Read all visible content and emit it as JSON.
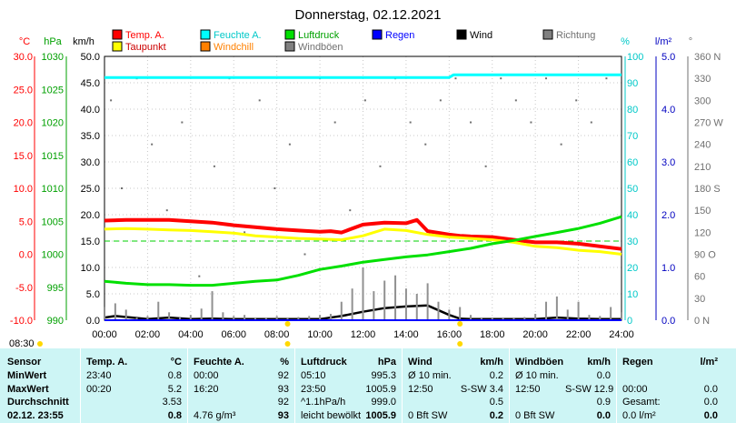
{
  "chart_data": {
    "type": "line",
    "title": "Donnerstag, 02.12.2021",
    "x_ticks": [
      "00:00",
      "02:00",
      "04:00",
      "06:00",
      "08:00",
      "10:00",
      "12:00",
      "14:00",
      "16:00",
      "18:00",
      "20:00",
      "22:00",
      "24:00"
    ],
    "xlim": [
      0,
      24
    ],
    "axes": {
      "temp": {
        "unit": "°C",
        "ticks": [
          "30.0",
          "25.0",
          "20.0",
          "15.0",
          "10.0",
          "5.0",
          "0.0",
          "-5.0",
          "-10.0"
        ],
        "range": [
          -10,
          30
        ],
        "color": "#ff0000"
      },
      "pressure": {
        "unit": "hPa",
        "ticks": [
          "1030",
          "1025",
          "1020",
          "1015",
          "1010",
          "1005",
          "1000",
          "995",
          "990"
        ],
        "range": [
          990,
          1030
        ],
        "color": "#00c000"
      },
      "wind": {
        "unit": "km/h",
        "ticks": [
          "50.0",
          "45.0",
          "40.0",
          "35.0",
          "30.0",
          "25.0",
          "20.0",
          "15.0",
          "10.0",
          "5.0",
          "0.0"
        ],
        "range": [
          0,
          50
        ],
        "color": "#000000"
      },
      "humidity": {
        "unit": "%",
        "ticks": [
          "100",
          "90",
          "80",
          "70",
          "60",
          "50",
          "40",
          "30",
          "20",
          "10",
          "0"
        ],
        "range": [
          0,
          100
        ],
        "color": "#00d0d0"
      },
      "rain": {
        "unit": "l/m²",
        "ticks": [
          "5.0",
          "4.0",
          "3.0",
          "2.0",
          "1.0",
          "0.0"
        ],
        "range": [
          0,
          5
        ],
        "color": "#0000c0"
      },
      "direction": {
        "unit": "°",
        "ticks": [
          "360 N",
          "330",
          "300",
          "270 W",
          "240",
          "210",
          "180 S",
          "150",
          "120",
          "90 O",
          "60",
          "30",
          "0   N"
        ],
        "range": [
          0,
          360
        ],
        "color": "#808080"
      }
    },
    "legend": [
      {
        "name": "Temp. A.",
        "color": "#ff0000"
      },
      {
        "name": "Feuchte A.",
        "color": "#00ffff"
      },
      {
        "name": "Luftdruck",
        "color": "#00e000"
      },
      {
        "name": "Regen",
        "color": "#0000ff"
      },
      {
        "name": "Wind",
        "color": "#000000"
      },
      {
        "name": "Richtung",
        "color": "#808080"
      },
      {
        "name": "Taupunkt",
        "color": "#ffff00"
      },
      {
        "name": "Windchill",
        "color": "#ff8000"
      },
      {
        "name": "Windböen",
        "color": "#808080"
      }
    ],
    "series": [
      {
        "name": "Temp. A.",
        "axis": "temp",
        "color": "#ff0000",
        "x": [
          0,
          1,
          2,
          3,
          4,
          5,
          6,
          7,
          8,
          9,
          10,
          10.5,
          11,
          12,
          13,
          14,
          14.5,
          15,
          16,
          16.5,
          17,
          18,
          19,
          20,
          21,
          22,
          23,
          24
        ],
        "y": [
          5.1,
          5.2,
          5.2,
          5.2,
          5.0,
          4.8,
          4.4,
          4.1,
          3.8,
          3.6,
          3.4,
          3.5,
          3.3,
          4.5,
          4.8,
          4.7,
          5.2,
          3.5,
          3.0,
          2.8,
          2.7,
          2.6,
          2.2,
          1.8,
          1.8,
          1.6,
          1.2,
          0.8
        ]
      },
      {
        "name": "Taupunkt",
        "axis": "temp",
        "color": "#ffff00",
        "x": [
          0,
          1,
          2,
          3,
          4,
          5,
          6,
          7,
          8,
          9,
          10,
          11,
          12,
          13,
          14,
          15,
          16,
          17,
          18,
          19,
          20,
          21,
          22,
          23,
          24
        ],
        "y": [
          3.8,
          3.9,
          3.8,
          3.7,
          3.6,
          3.4,
          3.2,
          2.8,
          2.6,
          2.4,
          2.3,
          2.2,
          2.8,
          3.8,
          3.6,
          3.0,
          2.6,
          2.4,
          2.2,
          1.8,
          1.2,
          1.0,
          0.6,
          0.4,
          0.0
        ]
      },
      {
        "name": "Feuchte A.",
        "axis": "humidity",
        "color": "#00ffff",
        "x": [
          0,
          1,
          2,
          3,
          4,
          5,
          6,
          7,
          8,
          9,
          10,
          11,
          12,
          13,
          14,
          15,
          16,
          16.2,
          17,
          18,
          19,
          20,
          21,
          22,
          23,
          24
        ],
        "y": [
          92,
          92,
          92,
          92,
          92,
          92,
          92,
          92,
          92,
          92,
          92,
          92,
          92,
          92,
          92,
          92,
          92,
          93,
          93,
          93,
          93,
          93,
          93,
          93,
          93,
          93
        ]
      },
      {
        "name": "Luftdruck",
        "axis": "pressure",
        "color": "#00e000",
        "x": [
          0,
          1,
          2,
          3,
          4,
          5,
          6,
          7,
          8,
          9,
          10,
          11,
          12,
          13,
          14,
          15,
          16,
          17,
          18,
          19,
          20,
          21,
          22,
          23,
          24
        ],
        "y": [
          995.9,
          995.6,
          995.4,
          995.4,
          995.3,
          995.3,
          995.6,
          995.9,
          996.1,
          996.8,
          997.7,
          998.2,
          998.8,
          999.2,
          999.6,
          999.9,
          1000.4,
          1000.9,
          1001.6,
          1002.1,
          1002.7,
          1003.3,
          1003.9,
          1004.7,
          1005.7
        ]
      },
      {
        "name": "Wind",
        "axis": "wind",
        "color": "#000000",
        "x": [
          0,
          0.5,
          1,
          2,
          3,
          4,
          5,
          6,
          7,
          8,
          9,
          10,
          11,
          12,
          13,
          14,
          15,
          16,
          16.5,
          17,
          18,
          19,
          20,
          21,
          22,
          23,
          24
        ],
        "y": [
          0.5,
          0.8,
          0.6,
          0.2,
          0.5,
          0.2,
          0.3,
          0.2,
          0.2,
          0.2,
          0.2,
          0.2,
          0.8,
          1.6,
          2.3,
          2.6,
          2.8,
          1.0,
          0.3,
          0.2,
          0.2,
          0.2,
          0.2,
          0.5,
          0.3,
          0.2,
          0.2
        ]
      },
      {
        "name": "Windböen",
        "axis": "wind",
        "color": "#909090",
        "x": [
          0,
          0.5,
          1,
          1.5,
          2,
          2.5,
          3,
          3.5,
          4,
          4.5,
          5,
          5.5,
          6,
          6.5,
          7,
          7.5,
          8,
          8.5,
          9,
          9.5,
          10,
          10.5,
          11,
          11.5,
          12,
          12.5,
          13,
          13.5,
          14,
          14.5,
          15,
          15.5,
          16,
          16.5,
          17,
          17.5,
          18,
          18.5,
          19,
          19.5,
          20,
          20.5,
          21,
          21.5,
          22,
          22.5,
          23,
          23.5,
          24
        ],
        "y": [
          2.5,
          3.2,
          2.0,
          0.5,
          0.8,
          3.5,
          1.5,
          0.5,
          1.0,
          2.2,
          5.5,
          1.5,
          0.8,
          1.0,
          0.5,
          0.5,
          0.8,
          0.5,
          0.6,
          0.8,
          1.0,
          1.2,
          3.5,
          6.0,
          10.0,
          5.5,
          7.5,
          8.5,
          6.0,
          5.0,
          7.0,
          3.5,
          2.0,
          2.5,
          1.0,
          0.5,
          0.5,
          0.5,
          0.5,
          0.6,
          1.2,
          3.5,
          4.5,
          2.0,
          3.5,
          1.0,
          0.8,
          2.5,
          1.5
        ]
      },
      {
        "name": "Regen",
        "axis": "rain",
        "color": "#0000ff",
        "x": [
          0,
          24
        ],
        "y": [
          0.0,
          0.0
        ]
      }
    ],
    "direction_points": {
      "axis": "direction",
      "color": "#707070",
      "x": [
        0.3,
        0.8,
        1.5,
        2.2,
        2.9,
        3.6,
        4.4,
        5.1,
        5.8,
        6.5,
        7.2,
        7.9,
        8.6,
        9.3,
        10.0,
        10.7,
        11.4,
        12.1,
        12.8,
        13.5,
        14.2,
        14.9,
        15.6,
        16.3,
        17.0,
        17.7,
        18.4,
        19.1,
        19.8,
        20.5,
        21.2,
        21.9,
        22.6,
        23.3
      ],
      "y": [
        300,
        180,
        330,
        240,
        150,
        270,
        60,
        210,
        330,
        120,
        300,
        180,
        240,
        90,
        330,
        270,
        150,
        300,
        210,
        330,
        270,
        240,
        300,
        330,
        270,
        210,
        330,
        300,
        270,
        330,
        240,
        300,
        270,
        330
      ]
    },
    "dew_threshold": {
      "axis": "temp",
      "value": 2.0,
      "color": "#00d000"
    },
    "markers": [
      {
        "label": "08:30",
        "time": 8.5
      },
      {
        "label": "",
        "time": 16.5
      }
    ]
  },
  "stats": {
    "headers": {
      "sensor": "Sensor",
      "temp": "Temp. A.",
      "temp_unit": "°C",
      "hum": "Feuchte A.",
      "hum_unit": "%",
      "pres": "Luftdruck",
      "pres_unit": "hPa",
      "wind": "Wind",
      "wind_unit": "km/h",
      "gust": "Windböen",
      "gust_unit": "km/h",
      "rain": "Regen",
      "rain_unit": "l/m²"
    },
    "rows": {
      "min": {
        "label": "MinWert",
        "temp_time": "23:40",
        "temp_val": "0.8",
        "hum_time": "00:00",
        "hum_val": "92",
        "pres_time": "05:10",
        "pres_val": "995.3",
        "wind_time": "Ø 10 min.",
        "wind_dir": "",
        "wind_val": "0.2",
        "gust_time": "Ø 10 min.",
        "gust_dir": "",
        "gust_val": "0.0",
        "rain_time": "",
        "rain_val": ""
      },
      "max": {
        "label": "MaxWert",
        "temp_time": "00:20",
        "temp_val": "5.2",
        "hum_time": "16:20",
        "hum_val": "93",
        "pres_time": "23:50",
        "pres_val": "1005.9",
        "wind_time": "12:50",
        "wind_dir": "S-SW 3.4",
        "wind_val": "",
        "gust_time": "12:50",
        "gust_dir": "S-SW 12.9",
        "gust_val": "",
        "rain_time": "00:00",
        "rain_val": "0.0"
      },
      "avg": {
        "label": "Durchschnitt",
        "temp_time": "",
        "temp_val": "3.53",
        "hum_time": "",
        "hum_val": "92",
        "pres_time": "^1.1hPa/h",
        "pres_val": "999.0",
        "wind_time": "",
        "wind_dir": "",
        "wind_val": "0.5",
        "gust_time": "",
        "gust_dir": "",
        "gust_val": "0.9",
        "rain_time": "Gesamt:",
        "rain_val": "0.0"
      },
      "cur": {
        "label": "02.12. 23:55",
        "temp_time": "",
        "temp_val": "0.8",
        "hum_time": "4.76 g/m³",
        "hum_val": "93",
        "pres_time": "leicht bewölkt",
        "pres_val": "1005.9",
        "wind_time": "0 Bft SW",
        "wind_dir": "",
        "wind_val": "0.2",
        "gust_time": "0 Bft SW",
        "gust_dir": "",
        "gust_val": "0.0",
        "rain_time": "0.0 l/m²",
        "rain_val": "0.0"
      }
    }
  }
}
